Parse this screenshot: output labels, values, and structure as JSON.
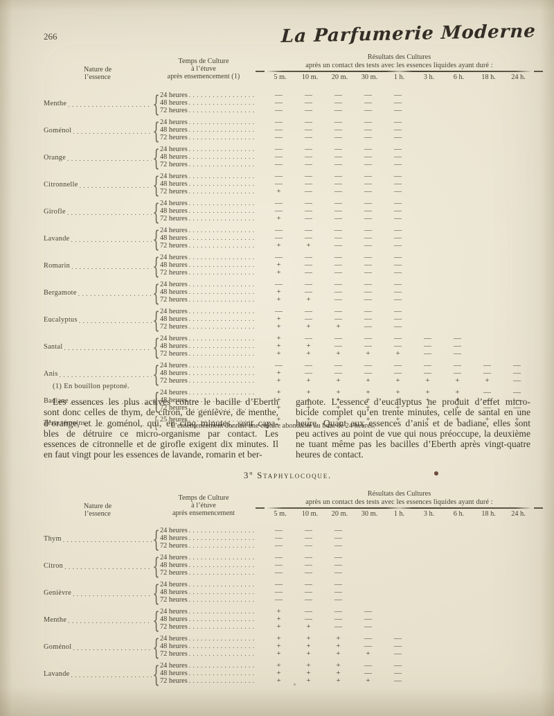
{
  "page_number": "266",
  "logo_text": "La Parfumerie Moderne",
  "footnote": "(1) En bouillon peptoné.",
  "section_heading": "3º Staphylocoque.",
  "tables": [
    {
      "header": {
        "nature": [
          "Nature de",
          "l’essence"
        ],
        "temps": [
          "Temps de Culture",
          "à l’étuve",
          "après ensemencement (1)"
        ],
        "resultats": [
          "Résultats des Cultures",
          "après un contact des tests avec les essences liquides ayant duré :"
        ],
        "columns": [
          "5 m.",
          "10 m.",
          "20 m.",
          "30 m.",
          "1 h.",
          "3 h.",
          "6 h.",
          "18 h.",
          "24 h."
        ]
      },
      "groups": [
        {
          "name": "Menthe",
          "rows": [
            {
              "time": "24 heures",
              "results": [
                "—",
                "—",
                "—",
                "—",
                "—"
              ]
            },
            {
              "time": "48 heures",
              "results": [
                "—",
                "—",
                "—",
                "—",
                "—"
              ]
            },
            {
              "time": "72 heures",
              "results": [
                "—",
                "—",
                "—",
                "—",
                "—"
              ]
            }
          ]
        },
        {
          "name": "Goménol",
          "rows": [
            {
              "time": "24 heures",
              "results": [
                "—",
                "—",
                "—",
                "—",
                "—"
              ]
            },
            {
              "time": "48 heures",
              "results": [
                "—",
                "—",
                "—",
                "—",
                "—"
              ]
            },
            {
              "time": "72 heures",
              "results": [
                "—",
                "—",
                "—",
                "—",
                "—"
              ]
            }
          ]
        },
        {
          "name": "Orange",
          "rows": [
            {
              "time": "24 heures",
              "results": [
                "—",
                "—",
                "—",
                "—",
                "—"
              ]
            },
            {
              "time": "48 heures",
              "results": [
                "—",
                "—",
                "—",
                "—",
                "—"
              ]
            },
            {
              "time": "72 heures",
              "results": [
                "—",
                "—",
                "—",
                "—",
                "—"
              ]
            }
          ]
        },
        {
          "name": "Citronnelle",
          "rows": [
            {
              "time": "24 heures",
              "results": [
                "—",
                "—",
                "—",
                "—",
                "—"
              ]
            },
            {
              "time": "48 heures",
              "results": [
                "—",
                "—",
                "—",
                "—",
                "—"
              ]
            },
            {
              "time": "72 heures",
              "results": [
                "+",
                "—",
                "—",
                "—",
                "—"
              ]
            }
          ]
        },
        {
          "name": "Girofle",
          "rows": [
            {
              "time": "24 heures",
              "results": [
                "—",
                "—",
                "—",
                "—",
                "—"
              ]
            },
            {
              "time": "48 heures",
              "results": [
                "—",
                "—",
                "—",
                "—",
                "—"
              ]
            },
            {
              "time": "72 heures",
              "results": [
                "+",
                "—",
                "—",
                "—",
                "—"
              ]
            }
          ]
        },
        {
          "name": "Lavande",
          "rows": [
            {
              "time": "24 heures",
              "results": [
                "—",
                "—",
                "—",
                "—",
                "—"
              ]
            },
            {
              "time": "48 heures",
              "results": [
                "—",
                "—",
                "—",
                "—",
                "—"
              ]
            },
            {
              "time": "72 heures",
              "results": [
                "+",
                "+",
                "—",
                "—",
                "—"
              ]
            }
          ]
        },
        {
          "name": "Romarin",
          "rows": [
            {
              "time": "24 heures",
              "results": [
                "—",
                "—",
                "—",
                "—",
                "—"
              ]
            },
            {
              "time": "48 heures",
              "results": [
                "+",
                "—",
                "—",
                "—",
                "—"
              ]
            },
            {
              "time": "72 heures",
              "results": [
                "+",
                "—",
                "—",
                "—",
                "—"
              ]
            }
          ]
        },
        {
          "name": "Bergamote",
          "rows": [
            {
              "time": "24 heures",
              "results": [
                "—",
                "—",
                "—",
                "—",
                "—"
              ]
            },
            {
              "time": "48 heures",
              "results": [
                "+",
                "—",
                "—",
                "—",
                "—"
              ]
            },
            {
              "time": "72 heures",
              "results": [
                "+",
                "+",
                "—",
                "—",
                "—"
              ]
            }
          ]
        },
        {
          "name": "Eucalyptus",
          "rows": [
            {
              "time": "24 heures",
              "results": [
                "—",
                "—",
                "—",
                "—",
                "—"
              ]
            },
            {
              "time": "48 heures",
              "results": [
                "+",
                "—",
                "—",
                "—",
                "—"
              ]
            },
            {
              "time": "72 heures",
              "results": [
                "+",
                "+",
                "+",
                "—",
                "—"
              ]
            }
          ]
        },
        {
          "name": "Santal",
          "rows": [
            {
              "time": "24 heures",
              "results": [
                "+",
                "—",
                "—",
                "—",
                "—",
                "—",
                "—"
              ]
            },
            {
              "time": "48 heures",
              "results": [
                "+",
                "+",
                "—",
                "—",
                "—",
                "—",
                "—"
              ]
            },
            {
              "time": "72 heures",
              "results": [
                "+",
                "+",
                "+",
                "+",
                "+",
                "—",
                "—"
              ]
            }
          ]
        },
        {
          "name": "Anis",
          "rows": [
            {
              "time": "24 heures",
              "results": [
                "—",
                "—",
                "—",
                "—",
                "—",
                "—",
                "—",
                "—",
                "—"
              ]
            },
            {
              "time": "48 heures",
              "results": [
                "+",
                "—",
                "—",
                "—",
                "—",
                "—",
                "—",
                "—",
                "—"
              ]
            },
            {
              "time": "72 heures",
              "results": [
                "+",
                "+",
                "+",
                "+",
                "+",
                "+",
                "+",
                "+",
                "—"
              ]
            }
          ]
        },
        {
          "name": "Badiane",
          "rows": [
            {
              "time": "24 heures",
              "results": [
                "+",
                "+",
                "+",
                "+",
                "+",
                "+",
                "+",
                "—",
                "—"
              ]
            },
            {
              "time": "48 heures",
              "results": [
                "+",
                "+",
                "+",
                "+",
                "+",
                "+",
                "+",
                "—",
                "—"
              ]
            },
            {
              "time": "72 heures",
              "results": [
                "+",
                "+",
                "+",
                "+",
                "+",
                "+",
                "+",
                "—",
                "—"
              ]
            }
          ]
        },
        {
          "name": "Tests témoins",
          "rows": [
            {
              "time": "25 heures",
              "results": [
                "+",
                "+",
                "+",
                "+",
                "+",
                "+",
                "+",
                "+",
                "+"
              ]
            }
          ],
          "note": "L’ensemencement donnait une culture abondante au bout de 24 heures."
        }
      ]
    },
    {
      "header": {
        "nature": [
          "Nature de",
          "l’essence"
        ],
        "temps": [
          "Temps de Culture",
          "à l’étuve",
          "après ensemencement"
        ],
        "resultats": [
          "Résultats des Cultures",
          "après un contact des tests avec les essences liquides ayant duré :"
        ],
        "columns": [
          "5 m.",
          "10 m.",
          "20 m.",
          "30 m.",
          "1 h.",
          "3 h.",
          "6 h.",
          "18 h.",
          "24 h."
        ]
      },
      "groups": [
        {
          "name": "Thym",
          "rows": [
            {
              "time": "24 heures",
              "results": [
                "—",
                "—",
                "—"
              ]
            },
            {
              "time": "48 heures",
              "results": [
                "—",
                "—",
                "—"
              ]
            },
            {
              "time": "72 heures",
              "results": [
                "—",
                "—",
                "—"
              ]
            }
          ]
        },
        {
          "name": "Citron",
          "rows": [
            {
              "time": "24 heures",
              "results": [
                "—",
                "—",
                "—"
              ]
            },
            {
              "time": "48 heures",
              "results": [
                "—",
                "—",
                "—"
              ]
            },
            {
              "time": "72 heures",
              "results": [
                "—",
                "—",
                "—"
              ]
            }
          ]
        },
        {
          "name": "Genièvre",
          "rows": [
            {
              "time": "24 heures",
              "results": [
                "—",
                "—",
                "—"
              ]
            },
            {
              "time": "48 heures",
              "results": [
                "—",
                "—",
                "—"
              ]
            },
            {
              "time": "72 heures",
              "results": [
                "—",
                "—",
                "—"
              ]
            }
          ]
        },
        {
          "name": "Menthe",
          "rows": [
            {
              "time": "24 heures",
              "results": [
                "+",
                "—",
                "—",
                "—"
              ]
            },
            {
              "time": "48 heures",
              "results": [
                "+",
                "—",
                "—",
                "—"
              ]
            },
            {
              "time": "72 heures",
              "results": [
                "+",
                "+",
                "—",
                "—"
              ]
            }
          ]
        },
        {
          "name": "Goménol",
          "rows": [
            {
              "time": "24 heures",
              "results": [
                "+",
                "+",
                "+",
                "—",
                "—"
              ]
            },
            {
              "time": "48 heures",
              "results": [
                "+",
                "+",
                "+",
                "—",
                "—"
              ]
            },
            {
              "time": "72 heures",
              "results": [
                "+",
                "+",
                "+",
                "+",
                "—"
              ]
            }
          ]
        },
        {
          "name": "Lavande",
          "rows": [
            {
              "time": "24 heures",
              "results": [
                "+",
                "+",
                "+",
                "—",
                "—"
              ]
            },
            {
              "time": "48 heures",
              "results": [
                "+",
                "+",
                "+",
                "—",
                "—"
              ]
            },
            {
              "time": "72 heures",
              "results": [
                "+",
                "+",
                "+",
                "+",
                "—"
              ]
            }
          ]
        }
      ]
    }
  ],
  "body": {
    "left_lines": [
      "Les essences les plus actives contre le bacille d’Eberth",
      "sont donc celles de thym, de citron, de genièvre, de menthe,",
      "d’orange, et le goménol, qui, en cinq minutes, sont capa-",
      "bles de détruire ce micro-organisme par contact. Les",
      "essences de citronnelle et de girofle exigent dix minutes. Il",
      "en faut vingt pour les essences de lavande, romarin et ber-"
    ],
    "right_lines": [
      "gamote. L’essence d’eucalyptus ne produit d’effet micro-",
      "bicide complet qu’en trente minutes, celle de santal en une",
      "heure. Quant aux essences d’anis et de badiane, elles sont",
      "peu actives au point de vue qui nous préoccupe, la deuxième",
      "ne tuant même pas les bacilles d’Eberth après vingt-quatre",
      "heures de contact."
    ]
  }
}
